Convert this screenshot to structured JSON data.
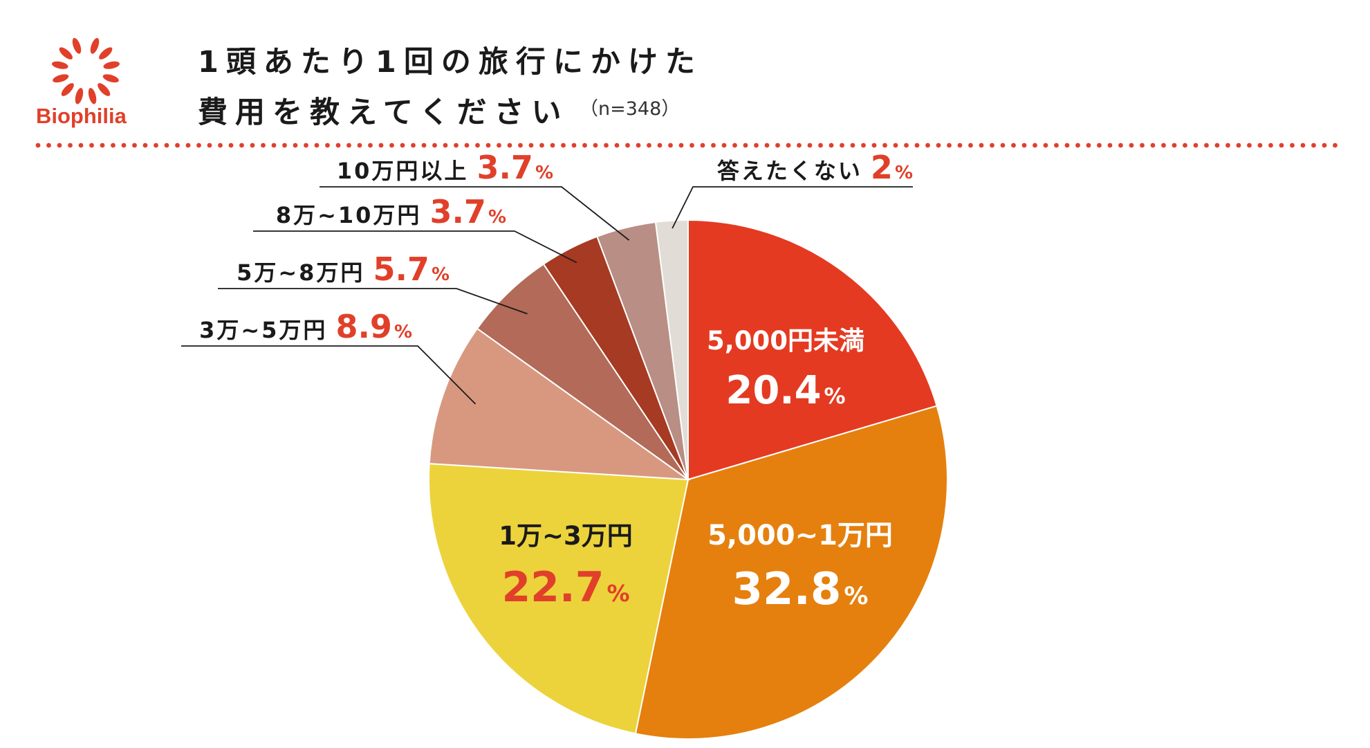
{
  "header": {
    "brand": "Biophilia",
    "title_line_1": "1頭あたり1回の旅行にかけた",
    "title_line_2": "費用を教えてください",
    "sample_size": "（n=348）"
  },
  "colors": {
    "accent": "#e0402a",
    "divider_dots": "#e0402a"
  },
  "chart_data": {
    "type": "pie",
    "title": "1頭あたり1回の旅行にかけた費用を教えてください",
    "start": "12 o'clock, clockwise",
    "slices": [
      {
        "label": "5,000円未満",
        "value": 20.4,
        "display": "20.4",
        "unit": "%",
        "color": "#e43a22",
        "label_color": "#ffffff",
        "value_color": "#ffffff",
        "placement": "inside"
      },
      {
        "label": "5,000~1万円",
        "value": 32.8,
        "display": "32.8",
        "unit": "%",
        "color": "#e5800e",
        "label_color": "#ffffff",
        "value_color": "#ffffff",
        "placement": "inside"
      },
      {
        "label": "1万~3万円",
        "value": 22.7,
        "display": "22.7",
        "unit": "%",
        "color": "#ecd33c",
        "label_color": "#1a1a1a",
        "value_color": "#e0402a",
        "placement": "inside"
      },
      {
        "label": "3万~5万円",
        "value": 8.9,
        "display": "8.9",
        "unit": "%",
        "color": "#d89880",
        "label_color": "#1a1a1a",
        "value_color": "#e0402a",
        "placement": "outside"
      },
      {
        "label": "5万~8万円",
        "value": 5.7,
        "display": "5.7",
        "unit": "%",
        "color": "#b36a58",
        "label_color": "#1a1a1a",
        "value_color": "#e0402a",
        "placement": "outside"
      },
      {
        "label": "8万~10万円",
        "value": 3.7,
        "display": "3.7",
        "unit": "%",
        "color": "#a63a22",
        "label_color": "#1a1a1a",
        "value_color": "#e0402a",
        "placement": "outside"
      },
      {
        "label": "10万円以上",
        "value": 3.7,
        "display": "3.7",
        "unit": "%",
        "color": "#b88e85",
        "label_color": "#1a1a1a",
        "value_color": "#e0402a",
        "placement": "outside"
      },
      {
        "label": "答えたくない",
        "value": 2,
        "display": "2",
        "unit": "%",
        "color": "#e2dcd6",
        "label_color": "#1a1a1a",
        "value_color": "#e0402a",
        "placement": "outside"
      }
    ]
  }
}
